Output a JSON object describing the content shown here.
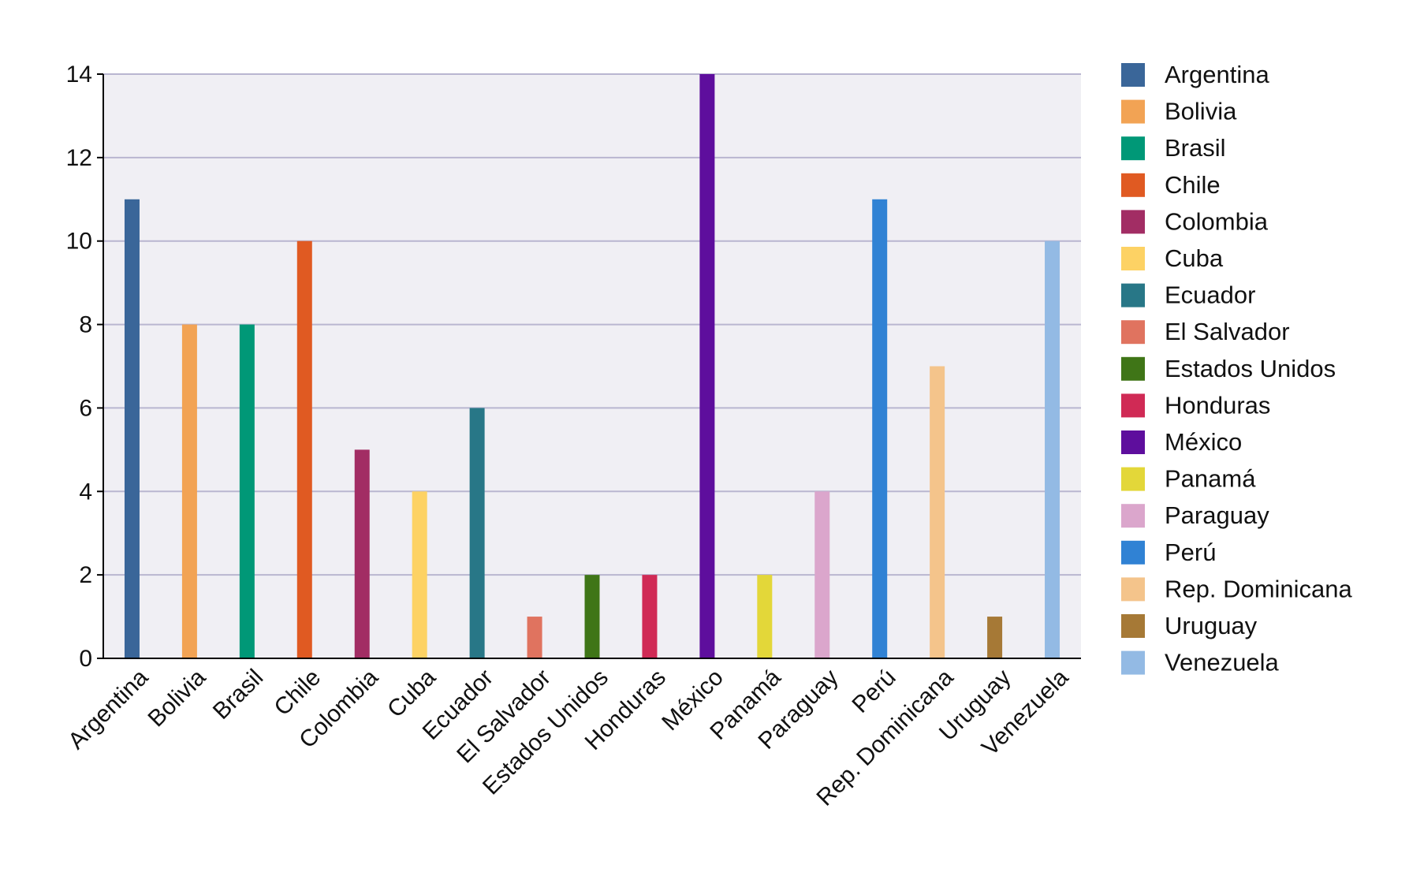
{
  "chart_data": {
    "type": "bar",
    "title": "",
    "xlabel": "",
    "ylabel": "",
    "ylim": [
      0,
      14
    ],
    "yticks": [
      0,
      2,
      4,
      6,
      8,
      10,
      12,
      14
    ],
    "grid": true,
    "legend_position": "right",
    "plot_background": "#f0eff4",
    "grid_color": "#b9b6d0",
    "categories": [
      "Argentina",
      "Bolivia",
      "Brasil",
      "Chile",
      "Colombia",
      "Cuba",
      "Ecuador",
      "El Salvador",
      "Estados Unidos",
      "Honduras",
      "México",
      "Panamá",
      "Paraguay",
      "Perú",
      "Rep. Dominicana",
      "Uruguay",
      "Venezuela"
    ],
    "values": [
      11,
      8,
      8,
      10,
      5,
      4,
      6,
      1,
      2,
      2,
      14,
      2,
      4,
      11,
      7,
      1,
      10
    ],
    "colors": [
      "#3a6699",
      "#f2a354",
      "#009877",
      "#e05a22",
      "#a22d64",
      "#fdd264",
      "#287787",
      "#e0735f",
      "#3f7517",
      "#d02a55",
      "#5e0e9d",
      "#e3d739",
      "#dba6cc",
      "#3082d4",
      "#f4c48b",
      "#a67936",
      "#93bae4"
    ]
  }
}
